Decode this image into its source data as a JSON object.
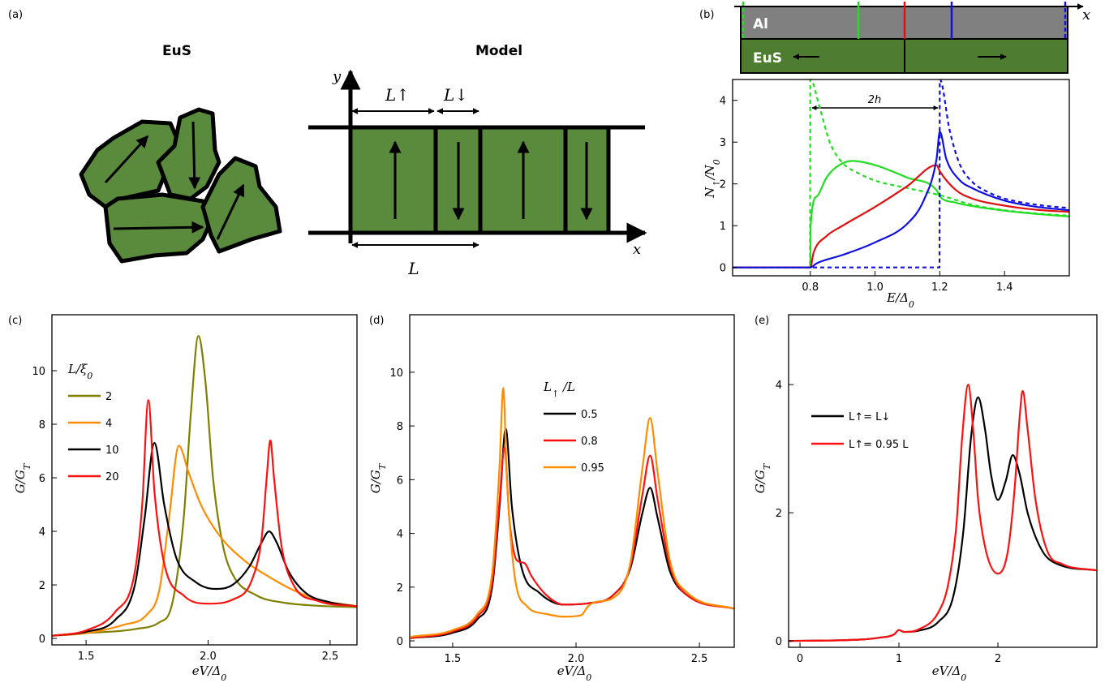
{
  "panel_labels": [
    "(a)",
    "(b)",
    "(c)",
    "(d)",
    "(e)"
  ],
  "diagram": {
    "eus_title": "EuS",
    "model_title": "Model",
    "y_axis": "y",
    "x_axis": "x",
    "l_up": "L↑",
    "l_down": "L↓",
    "l": "L"
  },
  "strip": {
    "top_layer": "Al",
    "bottom_layer": "EuS",
    "x_axis": "x"
  },
  "chart_data": [
    {
      "type": "line",
      "x_label": [
        "E/Δ",
        "0"
      ],
      "y_label": [
        "N",
        "↑",
        "/N",
        "0"
      ],
      "annotation": "2h",
      "xlim": [
        0.56,
        1.6
      ],
      "ylim": [
        -0.2,
        4.5
      ],
      "xticks": [
        0.8,
        {
          "value": 1,
          "label": "1.0"
        },
        1.2,
        1.4
      ],
      "yticks": [
        0,
        1,
        2,
        3,
        4
      ],
      "series": [
        {
          "color": "#22dd22",
          "dash": false,
          "x": [
            0.56,
            0.8,
            0.801,
            0.82,
            0.85,
            0.88,
            0.93,
            1.0,
            1.1,
            1.19,
            1.2,
            1.25,
            1.3,
            1.4,
            1.5,
            1.6
          ],
          "values": [
            0,
            0,
            1.0,
            1.7,
            2.15,
            2.4,
            2.55,
            2.45,
            2.15,
            1.85,
            1.7,
            1.55,
            1.47,
            1.36,
            1.28,
            1.22
          ]
        },
        {
          "color": "#22dd22",
          "dash": true,
          "x": [
            0.56,
            0.799,
            0.8,
            0.83,
            0.86,
            0.9,
            0.95,
            1.0,
            1.1,
            1.2,
            1.3,
            1.4,
            1.5,
            1.6
          ],
          "values": [
            0,
            0,
            4.5,
            3.8,
            3.0,
            2.5,
            2.25,
            2.08,
            1.9,
            1.73,
            1.5,
            1.37,
            1.29,
            1.24
          ]
        },
        {
          "color": "#1010e0",
          "dash": true,
          "x": [
            0.56,
            1.199,
            1.2,
            1.23,
            1.26,
            1.3,
            1.35,
            1.4,
            1.5,
            1.6
          ],
          "values": [
            0,
            0,
            4.5,
            3.3,
            2.5,
            2.05,
            1.8,
            1.65,
            1.5,
            1.42
          ]
        },
        {
          "color": "#e01010",
          "dash": false,
          "x": [
            0.56,
            0.8,
            0.81,
            0.85,
            0.9,
            1.0,
            1.1,
            1.19,
            1.2,
            1.25,
            1.3,
            1.4,
            1.5,
            1.6
          ],
          "values": [
            0,
            0,
            0.35,
            0.75,
            1.0,
            1.45,
            1.95,
            2.45,
            2.3,
            1.85,
            1.65,
            1.48,
            1.38,
            1.33
          ]
        },
        {
          "color": "#1010e0",
          "dash": false,
          "x": [
            0.56,
            0.8,
            0.82,
            0.9,
            1.0,
            1.1,
            1.15,
            1.19,
            1.2,
            1.22,
            1.26,
            1.3,
            1.4,
            1.5,
            1.6
          ],
          "values": [
            0,
            0,
            0.1,
            0.3,
            0.6,
            1.05,
            1.6,
            2.6,
            3.25,
            2.6,
            2.1,
            1.9,
            1.6,
            1.45,
            1.37
          ]
        }
      ]
    },
    {
      "type": "line",
      "x_label": [
        "eV/Δ",
        "0"
      ],
      "y_label": [
        "G/G",
        "T"
      ],
      "legend_title": [
        "L/ξ",
        "0"
      ],
      "xlim": [
        1.36,
        2.61
      ],
      "ylim": [
        -0.24,
        12.09
      ],
      "xticks": [
        1.5,
        {
          "value": 2,
          "label": "2.0"
        },
        2.5
      ],
      "yticks": [
        0,
        2,
        4,
        6,
        8,
        10
      ],
      "series": [
        {
          "name": "2",
          "color": "#808000",
          "dash": false,
          "x": [
            1.36,
            1.5,
            1.7,
            1.8,
            1.85,
            1.9,
            1.93,
            1.96,
            1.99,
            2.02,
            2.06,
            2.1,
            2.2,
            2.3,
            2.45,
            2.61
          ],
          "values": [
            0.1,
            0.2,
            0.35,
            0.6,
            1.2,
            4.5,
            8.5,
            11.3,
            9.5,
            6,
            3.5,
            2.4,
            1.6,
            1.35,
            1.22,
            1.17
          ]
        },
        {
          "name": "4",
          "color": "#ff8c00",
          "dash": false,
          "x": [
            1.36,
            1.5,
            1.65,
            1.75,
            1.8,
            1.84,
            1.88,
            1.92,
            1.97,
            2.05,
            2.15,
            2.25,
            2.35,
            2.45,
            2.61
          ],
          "values": [
            0.1,
            0.2,
            0.5,
            0.9,
            1.8,
            4.5,
            7.2,
            6.2,
            5.0,
            3.8,
            2.9,
            2.3,
            1.8,
            1.45,
            1.2
          ]
        },
        {
          "name": "10",
          "color": "#000000",
          "dash": false,
          "x": [
            1.36,
            1.5,
            1.62,
            1.7,
            1.74,
            1.78,
            1.82,
            1.87,
            1.95,
            2.03,
            2.1,
            2.17,
            2.22,
            2.25,
            2.28,
            2.33,
            2.4,
            2.5,
            2.61
          ],
          "values": [
            0.1,
            0.25,
            0.7,
            2.0,
            4.5,
            7.3,
            5.0,
            3.0,
            2.1,
            1.85,
            2.0,
            2.7,
            3.6,
            4.0,
            3.6,
            2.5,
            1.7,
            1.35,
            1.2
          ]
        },
        {
          "name": "20",
          "color": "#ff1010",
          "dash": false,
          "x": [
            1.36,
            1.5,
            1.62,
            1.7,
            1.73,
            1.755,
            1.78,
            1.82,
            1.9,
            2.0,
            2.1,
            2.18,
            2.22,
            2.24,
            2.255,
            2.27,
            2.3,
            2.35,
            2.45,
            2.61
          ],
          "values": [
            0.1,
            0.3,
            1.0,
            2.5,
            5,
            8.9,
            5.5,
            2.8,
            1.6,
            1.3,
            1.45,
            2.2,
            3.8,
            6.0,
            7.4,
            6.0,
            3.5,
            2.0,
            1.4,
            1.2
          ]
        }
      ]
    },
    {
      "type": "line",
      "x_label": [
        "eV/Δ",
        "0"
      ],
      "y_label": [
        "G/G",
        "T"
      ],
      "legend_title": [
        "L",
        "↑",
        " /L"
      ],
      "xlim": [
        1.326,
        2.641
      ],
      "ylim": [
        -0.24,
        12.14
      ],
      "xticks": [
        1.5,
        {
          "value": 2,
          "label": "2.0"
        },
        2.5
      ],
      "yticks": [
        0,
        2,
        4,
        6,
        8,
        10
      ],
      "series": [
        {
          "name": "0.5",
          "color": "#000000",
          "dash": false,
          "x": [
            1.33,
            1.5,
            1.6,
            1.66,
            1.69,
            1.715,
            1.74,
            1.78,
            1.85,
            1.95,
            2.05,
            2.15,
            2.22,
            2.27,
            2.3,
            2.33,
            2.38,
            2.45,
            2.64
          ],
          "values": [
            0.1,
            0.3,
            0.8,
            2.0,
            5.0,
            7.9,
            5.0,
            2.7,
            1.8,
            1.35,
            1.4,
            1.7,
            2.7,
            4.8,
            5.7,
            4.6,
            2.6,
            1.7,
            1.2
          ]
        },
        {
          "name": "0.8",
          "color": "#ff1010",
          "dash": false,
          "x": [
            1.33,
            1.5,
            1.6,
            1.66,
            1.69,
            1.71,
            1.73,
            1.76,
            1.79,
            1.82,
            1.88,
            1.95,
            2.05,
            2.15,
            2.22,
            2.27,
            2.3,
            2.33,
            2.38,
            2.45,
            2.64
          ],
          "values": [
            0.1,
            0.35,
            0.9,
            2.2,
            5.2,
            7.2,
            4.5,
            3.0,
            2.9,
            2.4,
            1.7,
            1.35,
            1.4,
            1.7,
            2.8,
            5.5,
            6.9,
            5.3,
            2.8,
            1.7,
            1.2
          ]
        },
        {
          "name": "0.95",
          "color": "#ff8c00",
          "dash": false,
          "x": [
            1.33,
            1.5,
            1.6,
            1.66,
            1.69,
            1.705,
            1.72,
            1.75,
            1.8,
            1.88,
            1.95,
            2.02,
            2.05,
            2.08,
            2.15,
            2.22,
            2.27,
            2.3,
            2.33,
            2.38,
            2.45,
            2.64
          ],
          "values": [
            0.15,
            0.4,
            1.0,
            2.5,
            6.5,
            9.4,
            6.0,
            2.5,
            1.3,
            1.0,
            0.9,
            0.95,
            1.3,
            1.45,
            1.6,
            2.9,
            6.5,
            8.3,
            6.3,
            3.0,
            1.8,
            1.2
          ]
        }
      ]
    },
    {
      "type": "line",
      "x_label": [
        "eV/Δ",
        "0"
      ],
      "y_label": [
        "G/G",
        "T"
      ],
      "xlim": [
        -0.115,
        3.0
      ],
      "ylim": [
        -0.1,
        5.09
      ],
      "xticks": [
        0,
        1,
        2
      ],
      "yticks": [
        0,
        2,
        4
      ],
      "series": [
        {
          "name": "L↑= L↓",
          "color": "#000000",
          "dash": false,
          "x": [
            -0.11,
            0.6,
            0.8,
            0.95,
            1.0,
            1.05,
            1.2,
            1.4,
            1.55,
            1.65,
            1.73,
            1.8,
            1.87,
            1.93,
            2.0,
            2.08,
            2.15,
            2.22,
            2.3,
            2.45,
            2.6,
            3.0
          ],
          "values": [
            0,
            0.02,
            0.05,
            0.1,
            0.17,
            0.14,
            0.16,
            0.3,
            0.7,
            1.7,
            3.2,
            3.8,
            3.3,
            2.6,
            2.2,
            2.5,
            2.9,
            2.6,
            2.0,
            1.4,
            1.2,
            1.1
          ]
        },
        {
          "name": "L↑= 0.95 L",
          "color": "#ff1010",
          "dash": false,
          "x": [
            -0.11,
            0.6,
            0.8,
            0.95,
            1.0,
            1.05,
            1.2,
            1.4,
            1.5,
            1.58,
            1.64,
            1.7,
            1.75,
            1.8,
            1.88,
            2.0,
            2.1,
            2.17,
            2.22,
            2.25,
            2.3,
            2.38,
            2.5,
            2.65,
            3.0
          ],
          "values": [
            0,
            0.02,
            0.05,
            0.1,
            0.17,
            0.14,
            0.18,
            0.45,
            0.9,
            1.8,
            3.2,
            4.0,
            3.3,
            2.2,
            1.4,
            1.05,
            1.4,
            2.4,
            3.5,
            3.9,
            3.3,
            2.2,
            1.4,
            1.2,
            1.1
          ]
        }
      ]
    }
  ]
}
